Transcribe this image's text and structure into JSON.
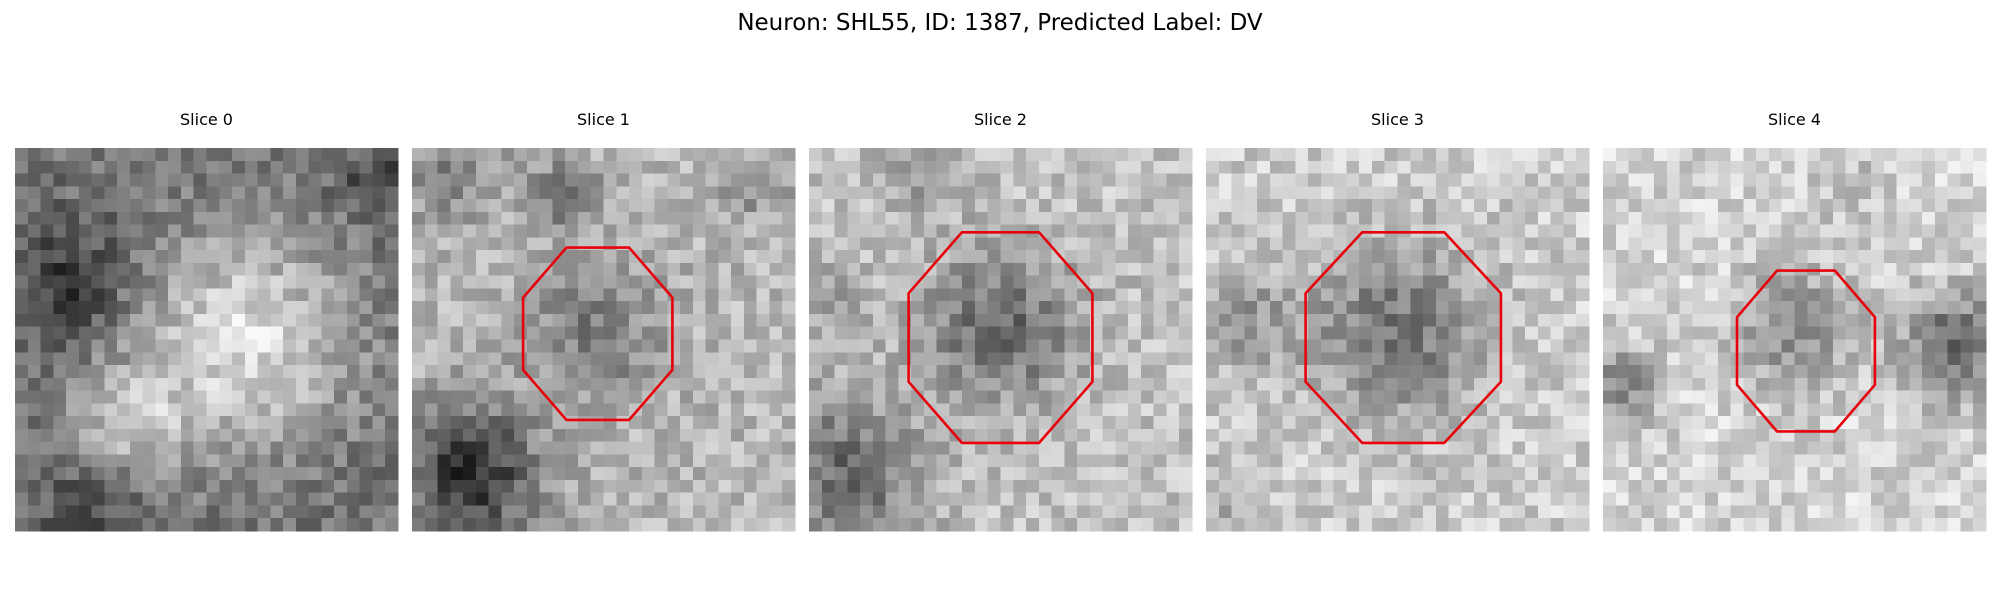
{
  "title": "Neuron: SHL55, ID: 1387, Predicted Label: DV",
  "panels": [
    {
      "title": "Slice 0"
    },
    {
      "title": "Slice 1"
    },
    {
      "title": "Slice 2"
    },
    {
      "title": "Slice 3"
    },
    {
      "title": "Slice 4"
    }
  ]
}
